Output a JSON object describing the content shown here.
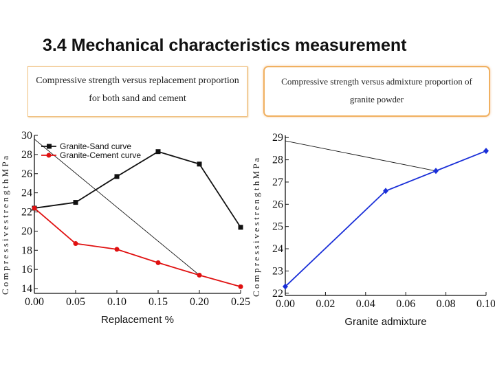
{
  "slide": {
    "title": "3.4 Mechanical characteristics measurement",
    "caption_left": "Compressive strength versus replacement proportion for both sand and cement",
    "caption_right": "Compressive strength versus admixture proportion of granite powder"
  },
  "colors": {
    "black_series": "#111111",
    "red_series": "#e01010",
    "blue_series": "#1a2fd8",
    "border": "#f0b060"
  },
  "chart_data": [
    {
      "type": "line",
      "xlabel": "Replacement %",
      "ylabel": "C o m p r e s s i v e s t r e n g t h M P a",
      "x": [
        0.0,
        0.05,
        0.1,
        0.15,
        0.2,
        0.25
      ],
      "xticks": [
        "0.00",
        "0.05",
        "0.10",
        "0.15",
        "0.20",
        "0.25"
      ],
      "yticks": [
        "14",
        "16",
        "18",
        "20",
        "22",
        "24",
        "26",
        "28",
        "30"
      ],
      "xlim": [
        0.0,
        0.25
      ],
      "ylim": [
        13.5,
        30
      ],
      "legend_position": "top-left",
      "series": [
        {
          "name": "Granite-Sand curve",
          "color": "#111111",
          "marker": "square",
          "values": [
            22.4,
            23.0,
            25.7,
            28.3,
            27.0,
            20.4
          ]
        },
        {
          "name": "Granite-Cement curve",
          "color": "#e01010",
          "marker": "circle",
          "values": [
            22.4,
            18.7,
            18.1,
            16.7,
            15.4,
            14.2
          ]
        }
      ]
    },
    {
      "type": "line",
      "xlabel": "Granite admixture",
      "ylabel": "C o m p r e s s i v e s t r e n g t h M P a",
      "x": [
        0.0,
        0.05,
        0.075,
        0.1
      ],
      "xticks": [
        "0.00",
        "0.02",
        "0.04",
        "0.06",
        "0.08",
        "0.10"
      ],
      "yticks": [
        "22",
        "23",
        "24",
        "25",
        "26",
        "27",
        "28",
        "29"
      ],
      "xlim": [
        0.0,
        0.1
      ],
      "ylim": [
        21.9,
        29.1
      ],
      "series": [
        {
          "color": "#1a2fd8",
          "marker": "diamond",
          "values": [
            22.3,
            26.6,
            27.5,
            28.4
          ]
        }
      ]
    }
  ]
}
